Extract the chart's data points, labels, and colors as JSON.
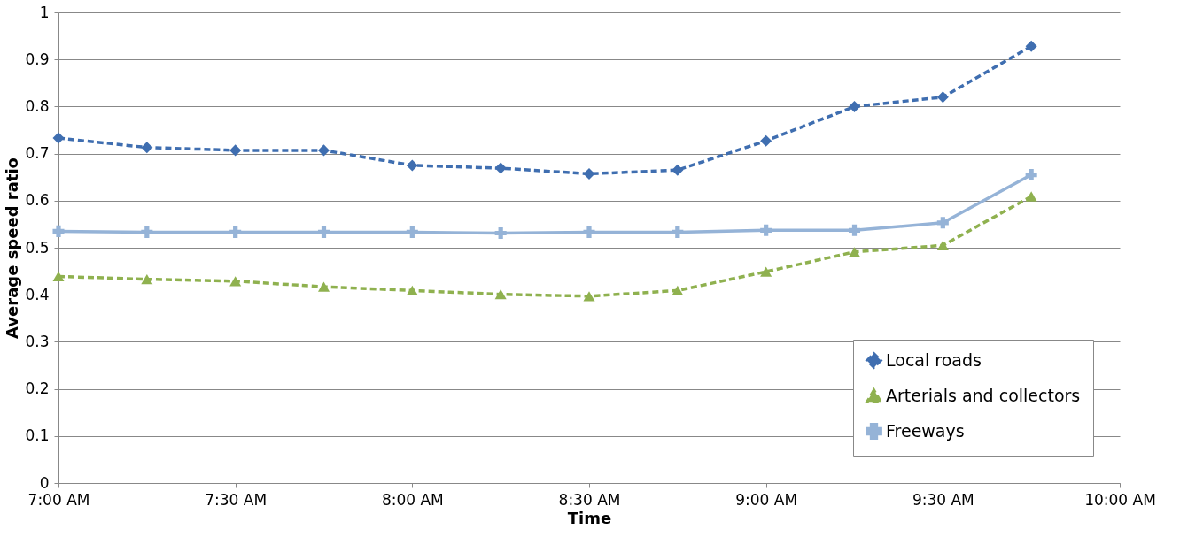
{
  "chart_data": {
    "type": "line",
    "xlabel": "Time",
    "ylabel": "Average speed ratio",
    "x": [
      7,
      7.25,
      7.5,
      7.75,
      8,
      8.25,
      8.5,
      8.75,
      9,
      9.25,
      9.5,
      9.75
    ],
    "series": [
      {
        "name": "Local roads",
        "color": "#3f6eb0",
        "marker": "diamond",
        "line_style": "dashed",
        "values": [
          0.733,
          0.713,
          0.707,
          0.707,
          0.675,
          0.669,
          0.657,
          0.665,
          0.727,
          0.8,
          0.82,
          0.928
        ]
      },
      {
        "name": "Arterials and collectors",
        "color": "#8fb14f",
        "marker": "triangle",
        "line_style": "dashed",
        "values": [
          0.439,
          0.433,
          0.429,
          0.417,
          0.409,
          0.401,
          0.397,
          0.409,
          0.449,
          0.491,
          0.505,
          0.609
        ]
      },
      {
        "name": "Freeways",
        "color": "#95b3d7",
        "marker": "cross",
        "line_style": "solid",
        "values": [
          0.535,
          0.533,
          0.533,
          0.533,
          0.533,
          0.531,
          0.533,
          0.533,
          0.537,
          0.537,
          0.553,
          0.655
        ]
      }
    ],
    "xlim": [
      7,
      10
    ],
    "xticks": [
      {
        "value": 7,
        "label": "7:00 AM"
      },
      {
        "value": 7.5,
        "label": "7:30 AM"
      },
      {
        "value": 8,
        "label": "8:00 AM"
      },
      {
        "value": 8.5,
        "label": "8:30 AM"
      },
      {
        "value": 9,
        "label": "9:00 AM"
      },
      {
        "value": 9.5,
        "label": "9:30 AM"
      },
      {
        "value": 10,
        "label": "10:00 AM"
      }
    ],
    "ylim": [
      0,
      1
    ],
    "yticks": [
      0,
      0.1,
      0.2,
      0.3,
      0.4,
      0.5,
      0.6,
      0.7,
      0.8,
      0.9,
      1
    ],
    "grid": "y",
    "legend": "bottom right"
  }
}
